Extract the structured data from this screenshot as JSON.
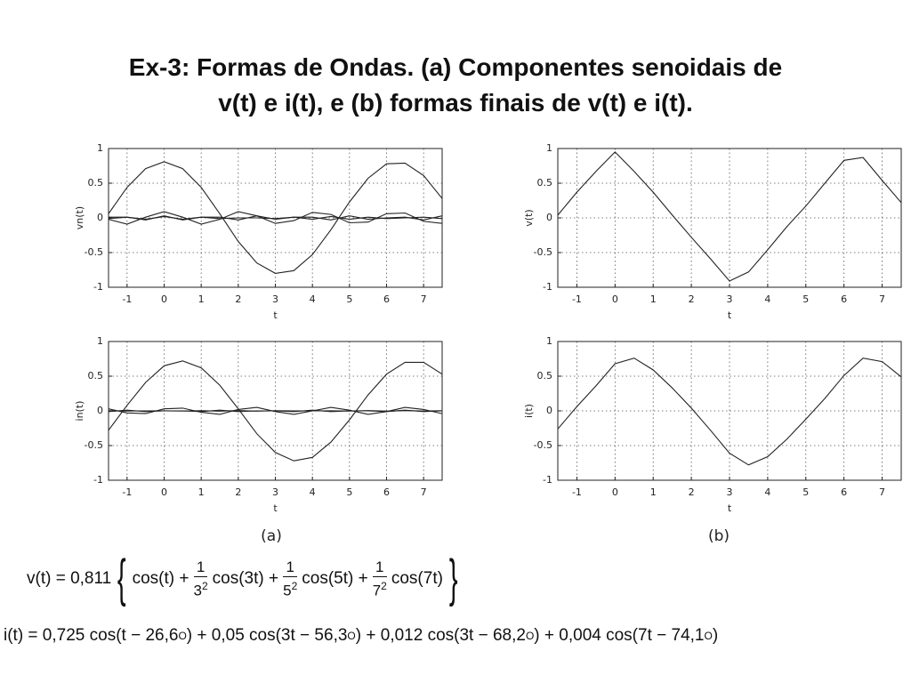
{
  "title": [
    "Ex-3: Formas de Ondas. (a) Componentes senoidais de",
    "v(t) e i(t), e (b) formas finais de v(t) e i(t)."
  ],
  "captions": [
    "(a)",
    "(b)"
  ],
  "chart_data": [
    {
      "type": "line",
      "ylabel": "vn(t)",
      "xlabel": "t",
      "x": [
        -1.5,
        -1,
        -0.5,
        0,
        0.5,
        1,
        1.5,
        2,
        2.5,
        3,
        3.5,
        4,
        4.5,
        5,
        5.5,
        6,
        6.5,
        7,
        7.5
      ],
      "series": [
        {
          "color": "#222222",
          "values": [
            0.06,
            0.44,
            0.71,
            0.81,
            0.71,
            0.44,
            0.06,
            -0.34,
            -0.65,
            -0.8,
            -0.76,
            -0.53,
            -0.17,
            0.23,
            0.57,
            0.78,
            0.79,
            0.61,
            0.28
          ]
        },
        {
          "color": "#222222",
          "values": [
            -0.02,
            -0.09,
            0.01,
            0.09,
            0.01,
            -0.09,
            -0.02,
            0.09,
            0.03,
            -0.08,
            -0.04,
            0.08,
            0.05,
            -0.07,
            -0.06,
            0.06,
            0.07,
            -0.05,
            -0.08
          ]
        },
        {
          "color": "#222222",
          "values": [
            0.01,
            0.01,
            -0.03,
            0.03,
            -0.03,
            0.01,
            0.01,
            -0.03,
            0.03,
            -0.02,
            0.01,
            0.01,
            -0.03,
            0.03,
            -0.02,
            0,
            0.01,
            -0.03,
            0.03
          ]
        },
        {
          "color": "#222222",
          "values": [
            -0.01,
            0.01,
            -0.02,
            0.02,
            -0.02,
            0.01,
            -0.01,
            0,
            0,
            -0.01,
            0.01,
            -0.02,
            0.02,
            -0.02,
            0.01,
            -0.01,
            0,
            0.01,
            -0.01
          ]
        }
      ],
      "xlim": [
        -1.5,
        7.5
      ],
      "ylim": [
        -1,
        1
      ],
      "xticks": [
        -1,
        0,
        1,
        2,
        3,
        4,
        5,
        6,
        7
      ],
      "yticks": [
        -1,
        -0.5,
        0,
        0.5,
        1
      ],
      "grid": true
    },
    {
      "type": "line",
      "ylabel": "v(t)",
      "xlabel": "t",
      "x": [
        -1.5,
        -1,
        -0.5,
        0,
        0.5,
        1,
        1.5,
        2,
        2.5,
        3,
        3.5,
        4,
        4.5,
        5,
        5.5,
        6,
        6.5,
        7,
        7.5
      ],
      "series": [
        {
          "color": "#222222",
          "values": [
            0.04,
            0.37,
            0.67,
            0.95,
            0.67,
            0.37,
            0.04,
            -0.28,
            -0.59,
            -0.91,
            -0.78,
            -0.46,
            -0.13,
            0.17,
            0.5,
            0.83,
            0.87,
            0.54,
            0.22
          ]
        }
      ],
      "xlim": [
        -1.5,
        7.5
      ],
      "ylim": [
        -1,
        1
      ],
      "xticks": [
        -1,
        0,
        1,
        2,
        3,
        4,
        5,
        6,
        7
      ],
      "yticks": [
        -1,
        -0.5,
        0,
        0.5,
        1
      ],
      "grid": true
    },
    {
      "type": "line",
      "ylabel": "in(t)",
      "xlabel": "t",
      "x": [
        -1.5,
        -1,
        -0.5,
        0,
        0.5,
        1,
        1.5,
        2,
        2.5,
        3,
        3.5,
        4,
        4.5,
        5,
        5.5,
        6,
        6.5,
        7,
        7.5
      ],
      "series": [
        {
          "color": "#222222",
          "values": [
            -0.28,
            0.08,
            0.41,
            0.65,
            0.72,
            0.62,
            0.37,
            0.03,
            -0.33,
            -0.6,
            -0.72,
            -0.67,
            -0.45,
            -0.13,
            0.23,
            0.53,
            0.7,
            0.7,
            0.53
          ]
        },
        {
          "color": "#222222",
          "values": [
            0.03,
            -0.03,
            -0.04,
            0.03,
            0.04,
            -0.02,
            -0.05,
            0.02,
            0.05,
            -0.01,
            -0.05,
            0,
            0.05,
            0.01,
            -0.05,
            -0.01,
            0.05,
            0.02,
            -0.04
          ]
        },
        {
          "color": "#222222",
          "values": [
            -0.01,
            0.01,
            -0.01,
            0,
            0,
            -0.01,
            0.01,
            -0.01,
            0,
            0,
            -0.01,
            0.01,
            -0.01,
            0,
            0,
            -0.01,
            0.01,
            -0.01,
            0
          ]
        },
        {
          "color": "#222222",
          "values": [
            0.003,
            -0.002,
            0,
            0.001,
            -0.002,
            0.003,
            -0.004,
            0.004,
            -0.004,
            0.002,
            -0.001,
            0,
            0.001,
            -0.003,
            0.004,
            -0.004,
            0.004,
            -0.003,
            0.002
          ]
        }
      ],
      "xlim": [
        -1.5,
        7.5
      ],
      "ylim": [
        -1,
        1
      ],
      "xticks": [
        -1,
        0,
        1,
        2,
        3,
        4,
        5,
        6,
        7
      ],
      "yticks": [
        -1,
        -0.5,
        0,
        0.5,
        1
      ],
      "grid": true
    },
    {
      "type": "line",
      "ylabel": "i(t)",
      "xlabel": "t",
      "x": [
        -1.5,
        -1,
        -0.5,
        0,
        0.5,
        1,
        1.5,
        2,
        2.5,
        3,
        3.5,
        4,
        4.5,
        5,
        5.5,
        6,
        6.5,
        7,
        7.5
      ],
      "series": [
        {
          "color": "#222222",
          "values": [
            -0.26,
            0.06,
            0.36,
            0.68,
            0.76,
            0.59,
            0.33,
            0.04,
            -0.28,
            -0.61,
            -0.78,
            -0.66,
            -0.41,
            -0.12,
            0.18,
            0.51,
            0.76,
            0.71,
            0.49
          ]
        }
      ],
      "xlim": [
        -1.5,
        7.5
      ],
      "ylim": [
        -1,
        1
      ],
      "xticks": [
        -1,
        0,
        1,
        2,
        3,
        4,
        5,
        6,
        7
      ],
      "yticks": [
        -1,
        -0.5,
        0,
        0.5,
        1
      ],
      "grid": true
    }
  ],
  "formulas": {
    "v": [
      "v(t) = 0,811",
      "{",
      "cos(t) +",
      {
        "num": "1",
        "den": "3",
        "exp": "2"
      },
      "cos(3t) +",
      {
        "num": "1",
        "den": "5",
        "exp": "2"
      },
      "cos(5t) +",
      {
        "num": "1",
        "den": "7",
        "exp": "2"
      },
      "cos(7t)",
      "}"
    ],
    "i": [
      "i(t) = 0,725 cos(t − 26,6",
      {
        "sup": "O"
      },
      ") + 0,05 cos(3t − 56,3",
      {
        "sup": "O"
      },
      ") + 0,012 cos(3t − 68,2",
      {
        "sup": "O"
      },
      ") + 0,004 cos(7t − 74,1",
      {
        "sup": "O"
      },
      ")"
    ]
  }
}
